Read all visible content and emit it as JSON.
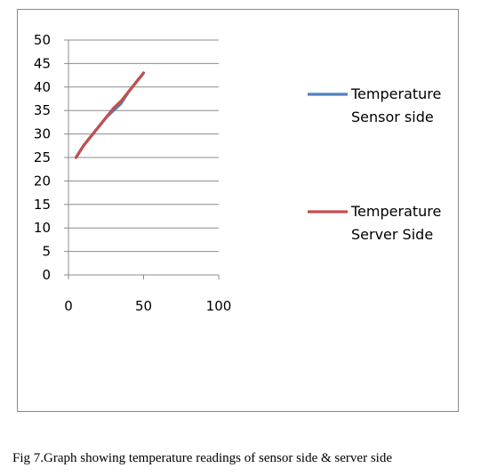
{
  "caption": "Fig 7.Graph showing temperature readings of sensor side & server side",
  "chart_data": {
    "type": "line",
    "title": "",
    "xlabel": "",
    "ylabel": "",
    "xlim": [
      0,
      100
    ],
    "ylim": [
      0,
      50
    ],
    "xticks": [
      0,
      50,
      100
    ],
    "yticks": [
      0,
      5,
      10,
      15,
      20,
      25,
      30,
      35,
      40,
      45,
      50
    ],
    "grid": "horizontal",
    "legend_position": "right",
    "series": [
      {
        "name": "Temperature Sensor side",
        "legend_lines": [
          "Temperature",
          "Sensor side"
        ],
        "color": "#4F81BD",
        "x": [
          5,
          10,
          15,
          20,
          25,
          30,
          35,
          40,
          45,
          50
        ],
        "y": [
          25,
          27.5,
          29.5,
          31.5,
          33.5,
          35,
          36.5,
          39,
          41,
          43
        ]
      },
      {
        "name": "Temperature Server Side",
        "legend_lines": [
          "Temperature",
          "Server Side"
        ],
        "color": "#C0504D",
        "x": [
          5,
          10,
          15,
          20,
          25,
          30,
          35,
          40,
          45,
          50
        ],
        "y": [
          25,
          27.5,
          29.5,
          31.5,
          33.5,
          35.5,
          37,
          39,
          41,
          43
        ]
      }
    ]
  }
}
